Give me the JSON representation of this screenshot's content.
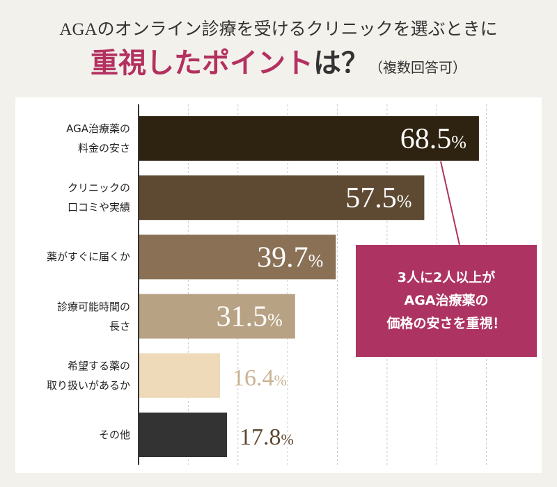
{
  "chart_data": {
    "type": "bar",
    "orientation": "horizontal",
    "title": "AGAのオンライン診療を受けるクリニックを選ぶときに",
    "subtitle_highlight": "重視したポイント",
    "subtitle_rest": "は？",
    "subtitle_note": "（複数回答可）",
    "categories": [
      "AGA治療薬の\n料金の安さ",
      "クリニックの\n口コミや実績",
      "薬がすぐに届くか",
      "診療可能時間の\n長さ",
      "希望する薬の\n取り扱いがあるか",
      "その他"
    ],
    "values": [
      68.5,
      57.5,
      39.7,
      31.5,
      16.4,
      17.8
    ],
    "value_labels": [
      "68.5%",
      "57.5%",
      "39.7%",
      "31.5%",
      "16.4%",
      "17.8%"
    ],
    "colors": [
      "#2e2210",
      "#5e4a33",
      "#8a7155",
      "#b8a284",
      "#eed9b8",
      "#333333"
    ],
    "label_colors": [
      "#ffffff",
      "#ffffff",
      "#ffffff",
      "#ffffff",
      "#c9b392",
      "#5e4a33"
    ],
    "xlim": [
      0,
      80
    ],
    "gridlines": [
      10,
      20,
      30,
      40,
      50,
      60,
      70
    ],
    "grid": true,
    "annotation": "3人に2人以上が\nAGA治療薬の\n価格の安さを重視！",
    "annotation_color": "#ad3462"
  }
}
